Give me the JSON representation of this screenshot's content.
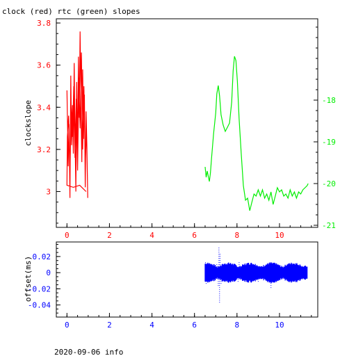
{
  "page": {
    "title": "clock (red) rtc (green) slopes",
    "footer": "2020-09-06 info"
  },
  "colors": {
    "clock": "#ff0000",
    "rtc": "#00ee00",
    "offset": "#0000ff",
    "frame": "#000000"
  },
  "chart_data": [
    {
      "type": "line",
      "title": "clock (red) rtc (green) slopes",
      "ylabel": "clockslope",
      "xlim": [
        -0.5,
        11.8
      ],
      "ylim": [
        2.83,
        3.82
      ],
      "y2lim": [
        -21.05,
        -16.05
      ],
      "grid": false,
      "xticks": [
        "0",
        "2",
        "4",
        "6",
        "8",
        "10"
      ],
      "yticks": [
        "3",
        "3.2",
        "3.4",
        "3.6",
        "3.8"
      ],
      "y2ticks": [
        "-18",
        "-19",
        "-20",
        "-21"
      ],
      "series": [
        {
          "name": "clock (red)",
          "axis": "left",
          "color": "#ff0000",
          "points": [
            [
              0.0,
              3.48
            ],
            [
              0.06,
              3.12
            ],
            [
              0.1,
              3.32
            ],
            [
              0.14,
              2.97
            ],
            [
              0.18,
              3.55
            ],
            [
              0.22,
              3.22
            ],
            [
              0.26,
              3.41
            ],
            [
              0.3,
              3.18
            ],
            [
              0.34,
              3.61
            ],
            [
              0.38,
              3.27
            ],
            [
              0.42,
              3.0
            ],
            [
              0.46,
              3.52
            ],
            [
              0.5,
              3.2
            ],
            [
              0.54,
              3.64
            ],
            [
              0.58,
              3.35
            ],
            [
              0.62,
              3.76
            ],
            [
              0.66,
              3.4
            ],
            [
              0.7,
              3.14
            ],
            [
              0.74,
              3.58
            ],
            [
              0.78,
              3.25
            ],
            [
              0.82,
              3.46
            ],
            [
              0.86,
              3.02
            ],
            [
              0.9,
              3.38
            ],
            [
              0.94,
              3.21
            ],
            [
              0.98,
              2.97
            ],
            [
              0.92,
              3.3
            ],
            [
              0.86,
              3.11
            ],
            [
              0.8,
              3.5
            ],
            [
              0.74,
              3.2
            ],
            [
              0.68,
              3.66
            ],
            [
              0.62,
              3.3
            ],
            [
              0.56,
              3.54
            ],
            [
              0.5,
              3.1
            ],
            [
              0.44,
              3.44
            ],
            [
              0.38,
              3.16
            ],
            [
              0.32,
              3.5
            ],
            [
              0.26,
              3.26
            ],
            [
              0.2,
              3.4
            ],
            [
              0.14,
              3.08
            ],
            [
              0.08,
              3.36
            ],
            [
              0.02,
              3.26
            ],
            [
              0.0,
              3.03
            ],
            [
              0.3,
              3.02
            ],
            [
              0.6,
              3.03
            ],
            [
              0.9,
              3.0
            ]
          ]
        },
        {
          "name": "rtc (green)",
          "axis": "right",
          "color": "#00ee00",
          "points": [
            [
              6.5,
              -19.6
            ],
            [
              6.55,
              -19.85
            ],
            [
              6.6,
              -19.7
            ],
            [
              6.7,
              -19.95
            ],
            [
              6.75,
              -19.75
            ],
            [
              6.8,
              -19.4
            ],
            [
              6.9,
              -18.8
            ],
            [
              7.0,
              -18.3
            ],
            [
              7.05,
              -17.85
            ],
            [
              7.12,
              -17.65
            ],
            [
              7.18,
              -17.9
            ],
            [
              7.25,
              -18.35
            ],
            [
              7.35,
              -18.6
            ],
            [
              7.45,
              -18.75
            ],
            [
              7.55,
              -18.65
            ],
            [
              7.65,
              -18.55
            ],
            [
              7.75,
              -18.05
            ],
            [
              7.82,
              -17.3
            ],
            [
              7.88,
              -16.95
            ],
            [
              7.95,
              -17.05
            ],
            [
              8.02,
              -17.55
            ],
            [
              8.1,
              -18.45
            ],
            [
              8.2,
              -19.3
            ],
            [
              8.3,
              -20.05
            ],
            [
              8.4,
              -20.4
            ],
            [
              8.5,
              -20.35
            ],
            [
              8.6,
              -20.65
            ],
            [
              8.7,
              -20.45
            ],
            [
              8.8,
              -20.25
            ],
            [
              8.9,
              -20.3
            ],
            [
              9.0,
              -20.15
            ],
            [
              9.1,
              -20.3
            ],
            [
              9.2,
              -20.15
            ],
            [
              9.3,
              -20.35
            ],
            [
              9.4,
              -20.25
            ],
            [
              9.5,
              -20.4
            ],
            [
              9.6,
              -20.2
            ],
            [
              9.7,
              -20.5
            ],
            [
              9.8,
              -20.3
            ],
            [
              9.9,
              -20.1
            ],
            [
              10.0,
              -20.2
            ],
            [
              10.1,
              -20.15
            ],
            [
              10.2,
              -20.3
            ],
            [
              10.3,
              -20.25
            ],
            [
              10.4,
              -20.35
            ],
            [
              10.5,
              -20.15
            ],
            [
              10.6,
              -20.3
            ],
            [
              10.7,
              -20.2
            ],
            [
              10.8,
              -20.35
            ],
            [
              10.9,
              -20.2
            ],
            [
              11.0,
              -20.25
            ],
            [
              11.1,
              -20.15
            ],
            [
              11.2,
              -20.1
            ],
            [
              11.3,
              -20.05
            ],
            [
              11.35,
              -20.0
            ]
          ]
        }
      ]
    },
    {
      "type": "scatter",
      "ylabel": "offset(ms)",
      "xlim": [
        -0.5,
        11.8
      ],
      "ylim": [
        -0.055,
        0.038
      ],
      "grid": false,
      "xticks": [
        "0",
        "2",
        "4",
        "6",
        "8",
        "10"
      ],
      "yticks": [
        "0.02",
        "0",
        "-0.02",
        "-0.04"
      ],
      "series": [
        {
          "name": "offset",
          "color": "#0000ff",
          "x_range": [
            6.5,
            11.3
          ],
          "band": 0.008,
          "outliers": [
            [
              6.52,
              0.013
            ],
            [
              6.55,
              -0.013
            ],
            [
              7.05,
              0.011
            ],
            [
              7.12,
              -0.018
            ],
            [
              7.15,
              0.031
            ],
            [
              7.18,
              -0.038
            ],
            [
              7.2,
              0.025
            ],
            [
              7.25,
              -0.015
            ],
            [
              7.5,
              0.009
            ],
            [
              8.05,
              -0.012
            ],
            [
              8.1,
              0.014
            ],
            [
              8.2,
              -0.01
            ],
            [
              8.65,
              0.012
            ],
            [
              9.0,
              -0.011
            ],
            [
              9.55,
              0.015
            ],
            [
              9.6,
              -0.02
            ],
            [
              10.1,
              0.01
            ],
            [
              10.55,
              -0.012
            ],
            [
              10.8,
              0.011
            ]
          ]
        }
      ]
    }
  ]
}
